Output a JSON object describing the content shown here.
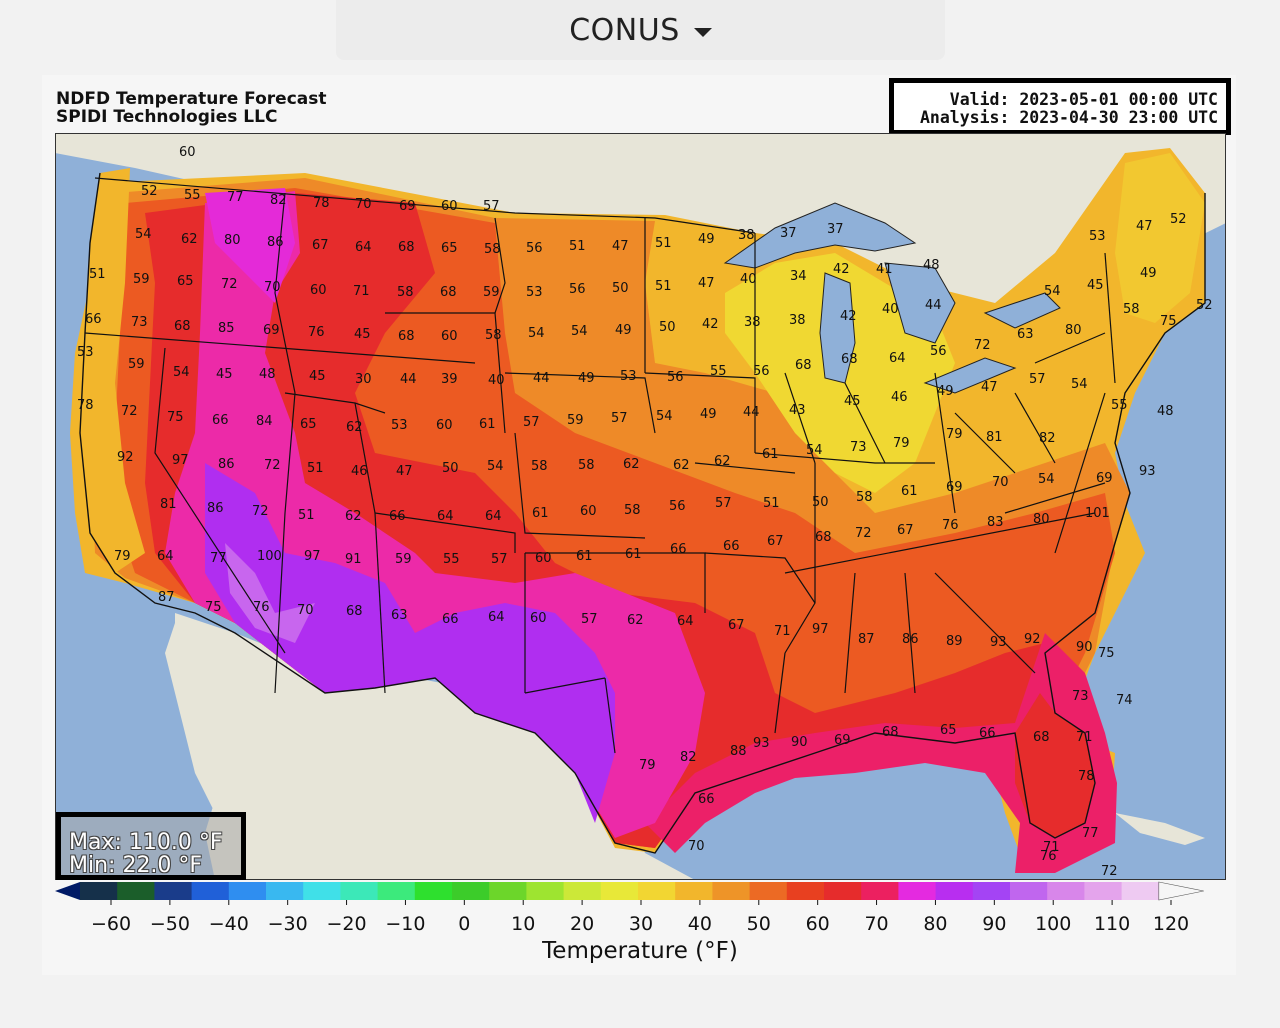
{
  "region_selector": {
    "label": "CONUS",
    "icon": "caret-down-icon"
  },
  "header": {
    "title_line1": "NDFD Temperature Forecast",
    "title_line2": "SPIDI Technologies LLC"
  },
  "valid_box": {
    "valid": "Valid: 2023-05-01 00:00 UTC",
    "analysis": "Analysis: 2023-04-30 23:00 UTC"
  },
  "maxmin": {
    "max": "Max: 110.0 °F",
    "min": "Min: 22.0 °F"
  },
  "colors": {
    "ocean": "#8fb0d8",
    "land_outside": "#e7e5d8",
    "lakes": "#8fb0d8"
  },
  "colorbar": {
    "label": "Temperature (°F)",
    "ticks": [
      "−60",
      "−50",
      "−40",
      "−30",
      "−20",
      "−10",
      "0",
      "10",
      "20",
      "30",
      "40",
      "50",
      "60",
      "70",
      "80",
      "90",
      "100",
      "110",
      "120"
    ],
    "colors": [
      "#001a66",
      "#15304a",
      "#1b5e2a",
      "#1a3c8a",
      "#2060d8",
      "#2f8ef0",
      "#39b8f0",
      "#40e0e8",
      "#3ce8b8",
      "#3cea7c",
      "#2ee02e",
      "#3ccc2a",
      "#6cd62a",
      "#9ee430",
      "#cce838",
      "#e8e838",
      "#f2d632",
      "#f2b62c",
      "#ee9428",
      "#ec6a24",
      "#e84020",
      "#e62c2c",
      "#ec2060",
      "#e42ae0",
      "#b82ef0",
      "#a444f4",
      "#c066ee",
      "#d886ea",
      "#e4a4ec",
      "#eecaf2",
      "#f6f6f6"
    ]
  },
  "station_values": [
    "60",
    "52",
    "55",
    "77",
    "82",
    "78",
    "70",
    "69",
    "60",
    "57",
    "54",
    "62",
    "80",
    "86",
    "67",
    "64",
    "68",
    "65",
    "58",
    "56",
    "51",
    "47",
    "51",
    "49",
    "38",
    "37",
    "37",
    "51",
    "59",
    "65",
    "72",
    "70",
    "60",
    "71",
    "58",
    "68",
    "59",
    "53",
    "56",
    "50",
    "51",
    "47",
    "40",
    "34",
    "42",
    "41",
    "48",
    "53",
    "47",
    "52",
    "66",
    "73",
    "68",
    "85",
    "69",
    "76",
    "45",
    "68",
    "60",
    "58",
    "54",
    "54",
    "49",
    "50",
    "42",
    "38",
    "38",
    "42",
    "40",
    "44",
    "54",
    "45",
    "49",
    "52",
    "75",
    "58",
    "80",
    "63",
    "72",
    "56",
    "64",
    "68",
    "68",
    "56",
    "55",
    "56",
    "53",
    "49",
    "44",
    "40",
    "39",
    "44",
    "30",
    "45",
    "48",
    "45",
    "54",
    "59",
    "53",
    "78",
    "72",
    "75",
    "66",
    "84",
    "65",
    "62",
    "53",
    "60",
    "61",
    "57",
    "59",
    "57",
    "54",
    "49",
    "44",
    "43",
    "45",
    "46",
    "49",
    "47",
    "57",
    "54",
    "55",
    "48",
    "82",
    "81",
    "79",
    "79",
    "73",
    "54",
    "61",
    "62",
    "62",
    "62",
    "58",
    "58",
    "54",
    "50",
    "47",
    "46",
    "51",
    "72",
    "86",
    "97",
    "92",
    "81",
    "86",
    "72",
    "51",
    "62",
    "66",
    "64",
    "64",
    "61",
    "60",
    "58",
    "56",
    "57",
    "51",
    "50",
    "58",
    "61",
    "69",
    "70",
    "54",
    "69",
    "93",
    "101",
    "80",
    "83",
    "76",
    "67",
    "72",
    "68",
    "67",
    "66",
    "66",
    "61",
    "61",
    "60",
    "57",
    "55",
    "59",
    "91",
    "97",
    "100",
    "77",
    "64",
    "79",
    "87",
    "75",
    "76",
    "70",
    "68",
    "63",
    "66",
    "64",
    "60",
    "57",
    "62",
    "64",
    "67",
    "71",
    "97",
    "87",
    "86",
    "89",
    "93",
    "92",
    "90",
    "75",
    "73",
    "74",
    "71",
    "68",
    "66",
    "65",
    "68",
    "69",
    "90",
    "93",
    "88",
    "82",
    "79",
    "78",
    "77",
    "71",
    "72",
    "66",
    "66",
    "70",
    "76",
    "87",
    "82",
    "79",
    "72",
    "75",
    "72",
    "72",
    "71",
    "74",
    "73",
    "84",
    "75",
    "75",
    "77"
  ]
}
